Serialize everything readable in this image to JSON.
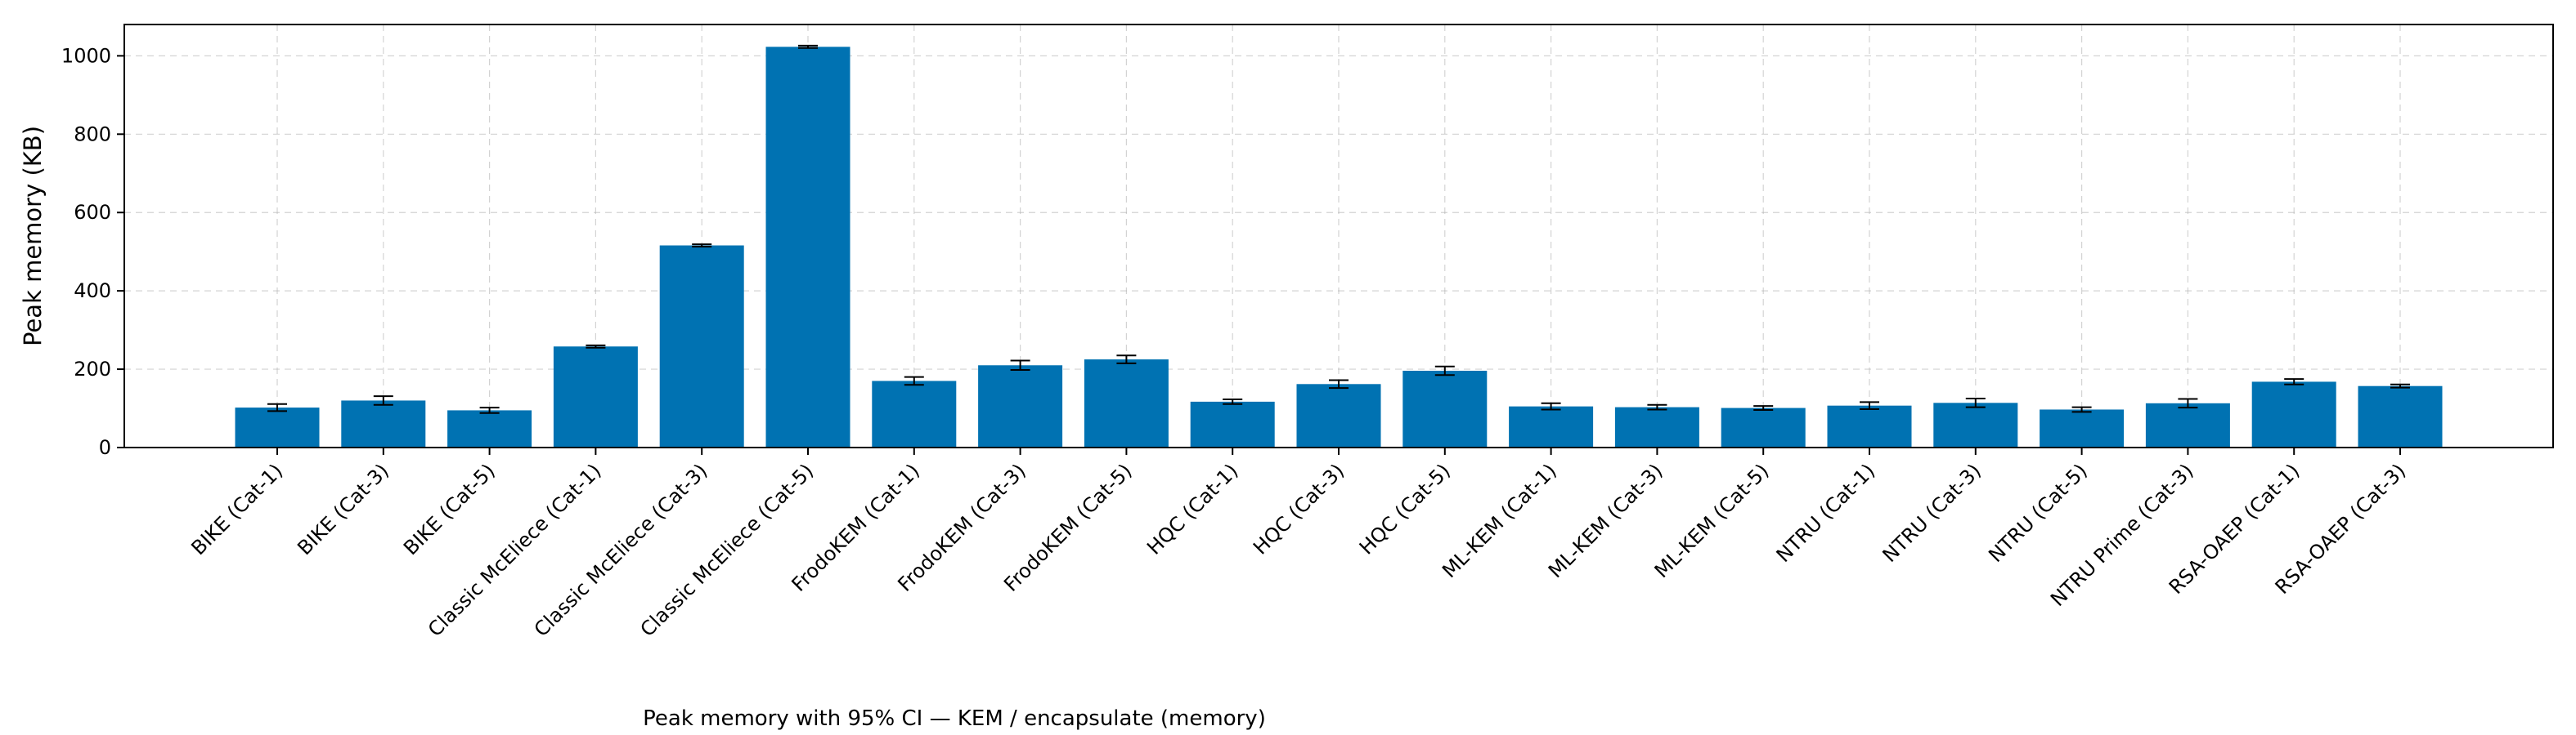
{
  "chart_data": {
    "type": "bar",
    "title": "",
    "caption": "Peak memory with 95% CI — KEM / encapsulate (memory)",
    "xlabel": "",
    "ylabel": "Peak memory (KB)",
    "ylim": [
      0,
      1080
    ],
    "yticks": [
      0,
      200,
      400,
      600,
      800,
      1000
    ],
    "grid": true,
    "bar_color": "#0072b2",
    "categories": [
      "BIKE (Cat-1)",
      "BIKE (Cat-3)",
      "BIKE (Cat-5)",
      "Classic McEliece (Cat-1)",
      "Classic McEliece (Cat-3)",
      "Classic McEliece (Cat-5)",
      "FrodoKEM (Cat-1)",
      "FrodoKEM (Cat-3)",
      "FrodoKEM (Cat-5)",
      "HQC (Cat-1)",
      "HQC (Cat-3)",
      "HQC (Cat-5)",
      "ML-KEM (Cat-1)",
      "ML-KEM (Cat-3)",
      "ML-KEM (Cat-5)",
      "NTRU (Cat-1)",
      "NTRU (Cat-3)",
      "NTRU (Cat-5)",
      "NTRU Prime (Cat-3)",
      "RSA-OAEP (Cat-1)",
      "RSA-OAEP (Cat-3)"
    ],
    "values": [
      102,
      120,
      95,
      258,
      516,
      1023,
      170,
      210,
      225,
      117,
      162,
      196,
      105,
      103,
      101,
      107,
      114,
      97,
      113,
      168,
      157
    ],
    "ci": [
      9,
      11,
      7,
      3,
      3,
      3,
      10,
      12,
      10,
      6,
      10,
      11,
      8,
      6,
      5,
      9,
      11,
      6,
      11,
      7,
      4
    ]
  }
}
